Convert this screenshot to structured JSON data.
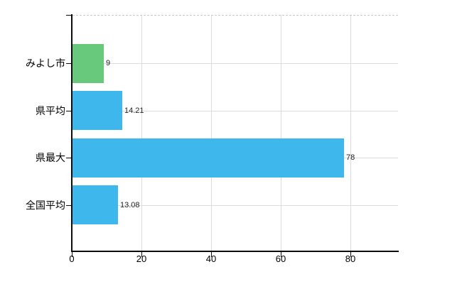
{
  "chart_data": {
    "type": "bar",
    "orientation": "horizontal",
    "categories": [
      "みよし市",
      "県平均",
      "県最大",
      "全国平均"
    ],
    "values": [
      9,
      14.21,
      78,
      13.08
    ],
    "value_labels": [
      "9",
      "14.21",
      "78",
      "13.08"
    ],
    "bar_colors": [
      "#68c87c",
      "#3db7ec",
      "#3db7ec",
      "#3db7ec"
    ],
    "x_tick_values": [
      0,
      20,
      40,
      60,
      80
    ],
    "x_tick_labels": [
      "0",
      "20",
      "40",
      "60",
      "80"
    ],
    "xlim": [
      0,
      93.5
    ],
    "grid": true,
    "legend": false
  },
  "colors": {
    "bar_green": "#68c87c",
    "bar_blue": "#3db7ec",
    "axis": "#0b0b0b",
    "horizontal_gridline": "#d8ded8",
    "vertical_gridline": "#dcdcdc",
    "top_dashed_gridline": "#c9c9c9",
    "background": "#ffffff",
    "category_text": "#000000",
    "value_text": "#222222"
  }
}
